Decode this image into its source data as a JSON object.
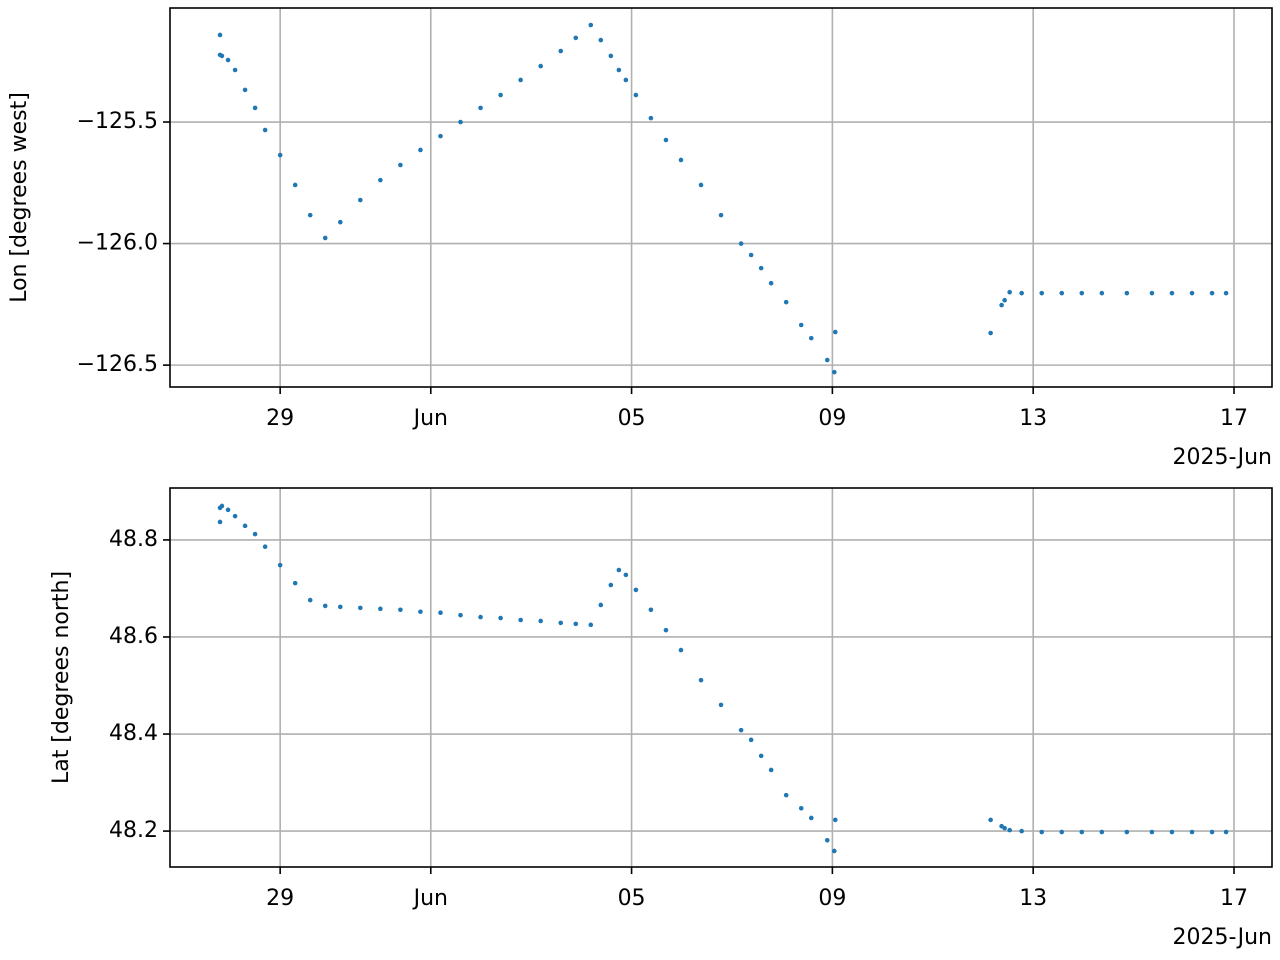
{
  "chart_data": [
    {
      "type": "scatter",
      "ylabel": "Lon [degrees west]",
      "color": "#1f77b4",
      "grid": true,
      "x": [
        "2025-05-27T19:15",
        "2025-05-27T19:15",
        "2025-05-27T20:10",
        "2025-05-27T23:05",
        "2025-05-28T02:27",
        "2025-05-28T07:14",
        "2025-05-28T12:01",
        "2025-05-28T16:49",
        "2025-05-29T00:00",
        "2025-05-29T07:11",
        "2025-05-29T14:22",
        "2025-05-29T21:33",
        "2025-05-30T04:45",
        "2025-05-30T14:19",
        "2025-05-30T23:54",
        "2025-05-31T09:29",
        "2025-05-31T19:04",
        "2025-06-01T04:39",
        "2025-06-01T14:13",
        "2025-06-01T23:48",
        "2025-06-02T09:23",
        "2025-06-02T18:58",
        "2025-06-03T04:33",
        "2025-06-03T14:08",
        "2025-06-03T21:19",
        "2025-06-04T04:30",
        "2025-06-04T09:17",
        "2025-06-04T14:05",
        "2025-06-04T17:55",
        "2025-06-04T21:16",
        "2025-06-05T02:04",
        "2025-06-05T09:14",
        "2025-06-05T16:26",
        "2025-06-05T23:37",
        "2025-06-06T09:12",
        "2025-06-06T18:46",
        "2025-06-07T04:22",
        "2025-06-07T09:09",
        "2025-06-07T13:57",
        "2025-06-07T18:43",
        "2025-06-08T01:55",
        "2025-06-08T09:06",
        "2025-06-08T13:54",
        "2025-06-08T21:33",
        "2025-06-09T00:55",
        "2025-06-09T01:24",
        "2025-06-12T03:39",
        "2025-06-12T08:54",
        "2025-06-12T10:21",
        "2025-06-12T12:45",
        "2025-06-12T18:29",
        "2025-06-13T04:05",
        "2025-06-13T13:39",
        "2025-06-13T23:14",
        "2025-06-14T08:49",
        "2025-06-14T20:47",
        "2025-06-15T08:46",
        "2025-06-15T18:20",
        "2025-06-16T03:56",
        "2025-06-16T13:31",
        "2025-06-16T20:13"
      ],
      "values": [
        -125.142,
        -125.224,
        -125.228,
        -125.245,
        -125.286,
        -125.368,
        -125.442,
        -125.533,
        -125.636,
        -125.759,
        -125.883,
        -125.977,
        -125.912,
        -125.821,
        -125.739,
        -125.677,
        -125.615,
        -125.558,
        -125.5,
        -125.442,
        -125.389,
        -125.327,
        -125.27,
        -125.208,
        -125.154,
        -125.101,
        -125.163,
        -125.228,
        -125.286,
        -125.327,
        -125.389,
        -125.484,
        -125.574,
        -125.656,
        -125.759,
        -125.883,
        -126.0,
        -126.047,
        -126.101,
        -126.163,
        -126.241,
        -126.335,
        -126.389,
        -126.479,
        -126.529,
        -126.364,
        -126.368,
        -126.253,
        -126.233,
        -126.2,
        -126.204,
        -126.204,
        -126.204,
        -126.204,
        -126.204,
        -126.204,
        -126.204,
        -126.204,
        -126.204,
        -126.204,
        -126.204
      ],
      "xlim": [
        "2025-05-26T19:20",
        "2025-06-17T18:10"
      ],
      "xticks": [
        {
          "value": "2025-05-29T00:00",
          "label": "29"
        },
        {
          "value": "2025-06-01T00:00",
          "label": "Jun"
        },
        {
          "value": "2025-06-05T00:00",
          "label": "05"
        },
        {
          "value": "2025-06-09T00:00",
          "label": "09"
        },
        {
          "value": "2025-06-13T00:00",
          "label": "13"
        },
        {
          "value": "2025-06-17T00:00",
          "label": "17"
        }
      ],
      "x_offset_label": "2025-Jun",
      "ylim": [
        -126.59,
        -125.031
      ],
      "yticks": [
        {
          "value": -126.5,
          "label": "−126.5"
        },
        {
          "value": -126.0,
          "label": "−126.0"
        },
        {
          "value": -125.5,
          "label": "−125.5"
        }
      ]
    },
    {
      "type": "scatter",
      "ylabel": "Lat [degrees north]",
      "color": "#1f77b4",
      "grid": true,
      "x": [
        "2025-05-27T19:15",
        "2025-05-27T19:15",
        "2025-05-27T20:10",
        "2025-05-27T23:05",
        "2025-05-28T02:27",
        "2025-05-28T07:14",
        "2025-05-28T12:01",
        "2025-05-28T16:49",
        "2025-05-29T00:00",
        "2025-05-29T07:11",
        "2025-05-29T14:22",
        "2025-05-29T21:33",
        "2025-05-30T04:45",
        "2025-05-30T14:19",
        "2025-05-30T23:54",
        "2025-05-31T09:29",
        "2025-05-31T19:04",
        "2025-06-01T04:39",
        "2025-06-01T14:13",
        "2025-06-01T23:48",
        "2025-06-02T09:23",
        "2025-06-02T18:58",
        "2025-06-03T04:33",
        "2025-06-03T14:08",
        "2025-06-03T21:19",
        "2025-06-04T04:30",
        "2025-06-04T09:17",
        "2025-06-04T14:05",
        "2025-06-04T17:55",
        "2025-06-04T21:16",
        "2025-06-05T02:04",
        "2025-06-05T09:14",
        "2025-06-05T16:26",
        "2025-06-05T23:37",
        "2025-06-06T09:12",
        "2025-06-06T18:46",
        "2025-06-07T04:22",
        "2025-06-07T09:09",
        "2025-06-07T13:57",
        "2025-06-07T18:43",
        "2025-06-08T01:55",
        "2025-06-08T09:06",
        "2025-06-08T13:54",
        "2025-06-08T21:33",
        "2025-06-09T00:55",
        "2025-06-09T01:24",
        "2025-06-12T03:39",
        "2025-06-12T08:54",
        "2025-06-12T10:21",
        "2025-06-12T12:45",
        "2025-06-12T18:29",
        "2025-06-13T04:05",
        "2025-06-13T13:39",
        "2025-06-13T23:14",
        "2025-06-14T08:49",
        "2025-06-14T20:47",
        "2025-06-15T08:46",
        "2025-06-15T18:20",
        "2025-06-16T03:56",
        "2025-06-16T13:31",
        "2025-06-16T20:13"
      ],
      "values": [
        48.837,
        48.866,
        48.87,
        48.862,
        48.849,
        48.829,
        48.812,
        48.786,
        48.748,
        48.711,
        48.676,
        48.664,
        48.662,
        48.66,
        48.658,
        48.656,
        48.652,
        48.65,
        48.645,
        48.641,
        48.639,
        48.635,
        48.633,
        48.629,
        48.627,
        48.625,
        48.666,
        48.707,
        48.738,
        48.728,
        48.697,
        48.656,
        48.614,
        48.573,
        48.511,
        48.46,
        48.408,
        48.388,
        48.355,
        48.326,
        48.274,
        48.247,
        48.227,
        48.181,
        48.159,
        48.223,
        48.223,
        48.21,
        48.206,
        48.202,
        48.2,
        48.198,
        48.198,
        48.198,
        48.198,
        48.198,
        48.198,
        48.198,
        48.198,
        48.198,
        48.198
      ],
      "xlim": [
        "2025-05-26T19:20",
        "2025-06-17T18:10"
      ],
      "xticks": [
        {
          "value": "2025-05-29T00:00",
          "label": "29"
        },
        {
          "value": "2025-06-01T00:00",
          "label": "Jun"
        },
        {
          "value": "2025-06-05T00:00",
          "label": "05"
        },
        {
          "value": "2025-06-09T00:00",
          "label": "09"
        },
        {
          "value": "2025-06-13T00:00",
          "label": "13"
        },
        {
          "value": "2025-06-17T00:00",
          "label": "17"
        }
      ],
      "x_offset_label": "2025-Jun",
      "ylim": [
        48.126,
        48.907
      ],
      "yticks": [
        48.2,
        48.4,
        48.6,
        48.8
      ]
    }
  ]
}
